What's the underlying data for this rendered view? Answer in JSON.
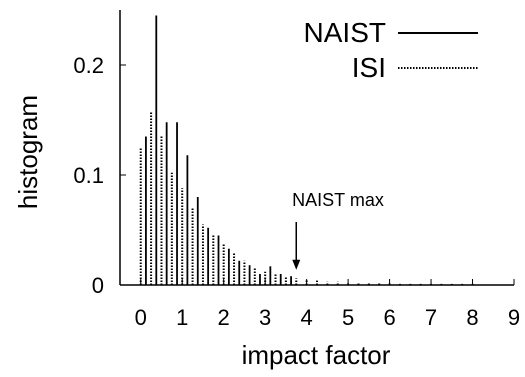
{
  "chart_data": {
    "type": "bar",
    "xlabel": "impact factor",
    "ylabel": "histogram",
    "xlim": [
      -0.5,
      9
    ],
    "ylim": [
      0,
      0.25
    ],
    "xticks": [
      "0",
      "1",
      "2",
      "3",
      "4",
      "5",
      "6",
      "7",
      "8",
      "9"
    ],
    "yticks": [
      "0",
      "0.1",
      "0.2"
    ],
    "bin_width": 0.25,
    "series": [
      {
        "name": "NAIST",
        "style": "solid",
        "x": [
          0.125,
          0.375,
          0.625,
          0.875,
          1.125,
          1.375,
          1.625,
          1.875,
          2.125,
          2.375,
          2.625,
          2.875,
          3.125,
          3.375,
          3.625
        ],
        "values": [
          0.135,
          0.245,
          0.148,
          0.148,
          0.118,
          0.08,
          0.052,
          0.045,
          0.033,
          0.022,
          0.018,
          0.01,
          0.017,
          0.01,
          0.008
        ]
      },
      {
        "name": "ISI",
        "style": "dotted",
        "x": [
          0.0,
          0.25,
          0.5,
          0.75,
          1.0,
          1.25,
          1.5,
          1.75,
          2.0,
          2.25,
          2.5,
          2.75,
          3.0,
          3.25,
          3.5,
          3.75,
          4.0,
          4.25,
          4.5,
          4.75,
          5.0,
          5.25,
          5.5,
          5.75,
          6.0,
          6.25,
          6.5,
          6.75,
          7.0,
          7.25,
          7.5,
          7.75,
          8.0
        ],
        "values": [
          0.125,
          0.158,
          0.135,
          0.102,
          0.088,
          0.07,
          0.055,
          0.045,
          0.038,
          0.03,
          0.022,
          0.015,
          0.012,
          0.01,
          0.008,
          0.006,
          0.005,
          0.004,
          0.003,
          0.003,
          0.002,
          0.002,
          0.002,
          0.002,
          0.002,
          0.001,
          0.001,
          0.001,
          0.001,
          0.001,
          0.001,
          0.001,
          0.001
        ]
      }
    ],
    "legend": {
      "placement": "top-right",
      "entries": [
        "NAIST",
        "ISI"
      ]
    },
    "annotation": {
      "text": "NAIST max",
      "x": 3.75,
      "y": 0.012
    }
  }
}
